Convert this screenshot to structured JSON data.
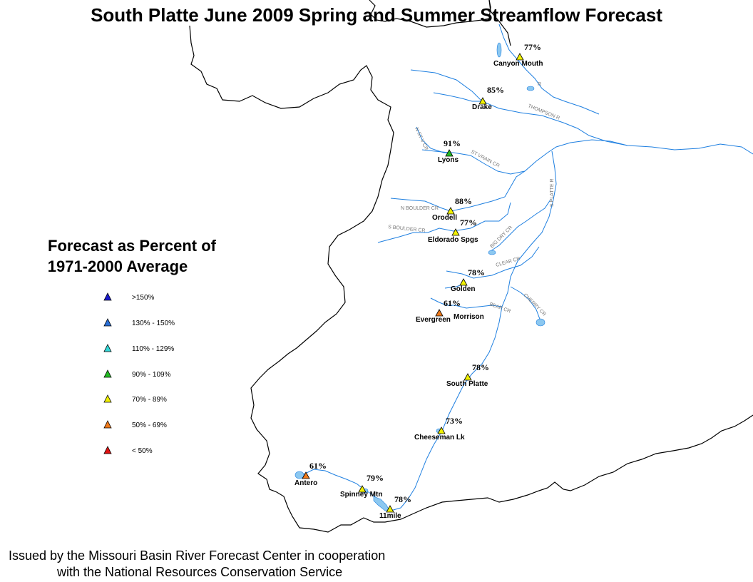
{
  "title": "South Platte June 2009 Spring and Summer Streamflow Forecast",
  "legend": {
    "title_line1": "Forecast as Percent of",
    "title_line2": "1971-2000 Average",
    "classes": [
      {
        "label": ">150%",
        "color": "#1a1acc"
      },
      {
        "label": "130% - 150%",
        "color": "#2a6fd6"
      },
      {
        "label": "110% - 129%",
        "color": "#33d6d6"
      },
      {
        "label": "90% - 109%",
        "color": "#22bb22"
      },
      {
        "label": "70% - 89%",
        "color": "#f0f000"
      },
      {
        "label": "50% - 69%",
        "color": "#f07a1a"
      },
      {
        "label": "< 50%",
        "color": "#e01010"
      }
    ]
  },
  "stations": [
    {
      "name": "Canyon Mouth",
      "percent": "77%",
      "color": "#f0f000"
    },
    {
      "name": "Drake",
      "percent": "85%",
      "color": "#f0f000"
    },
    {
      "name": "Lyons",
      "percent": "91%",
      "color": "#22bb22"
    },
    {
      "name": "Orodell",
      "percent": "88%",
      "color": "#f0f000"
    },
    {
      "name": "Eldorado Spgs",
      "percent": "77%",
      "color": "#f0f000"
    },
    {
      "name": "Golden",
      "percent": "78%",
      "color": "#f0f000"
    },
    {
      "name": "Evergreen",
      "percent": "61%",
      "color": "#f07a1a"
    },
    {
      "name": "Morrison",
      "percent": "",
      "color": "#f0f000"
    },
    {
      "name": "South Platte",
      "percent": "78%",
      "color": "#f0f000"
    },
    {
      "name": "Cheeseman Lk",
      "percent": "73%",
      "color": "#f0f000"
    },
    {
      "name": "Antero",
      "percent": "61%",
      "color": "#f07a1a"
    },
    {
      "name": "Spinney Mtn",
      "percent": "79%",
      "color": "#f0f000"
    },
    {
      "name": "11mile",
      "percent": "78%",
      "color": "#f0f000"
    }
  ],
  "rivers": {
    "thompson": "THOMPSON R",
    "st_vrain": "ST VRAIN CR",
    "n_st_vrain": "ST VRAIN CR",
    "s_platte": "S PLATTE R",
    "n_boulder": "N BOULDER CR",
    "s_boulder": "S BOULDER CR",
    "big_dry": "BIG DRY CR",
    "clear": "CLEAR CR",
    "cherry": "CHERRY CR",
    "bear": "BEAR CR",
    "r": "R"
  },
  "footer": {
    "line1": "Issued by the Missouri Basin River Forecast Center in cooperation",
    "line2": "with the National Resources Conservation Service"
  },
  "colors": {
    "river": "#1e7fe0",
    "lake": "#8cc8f0",
    "boundary": "#000000"
  }
}
